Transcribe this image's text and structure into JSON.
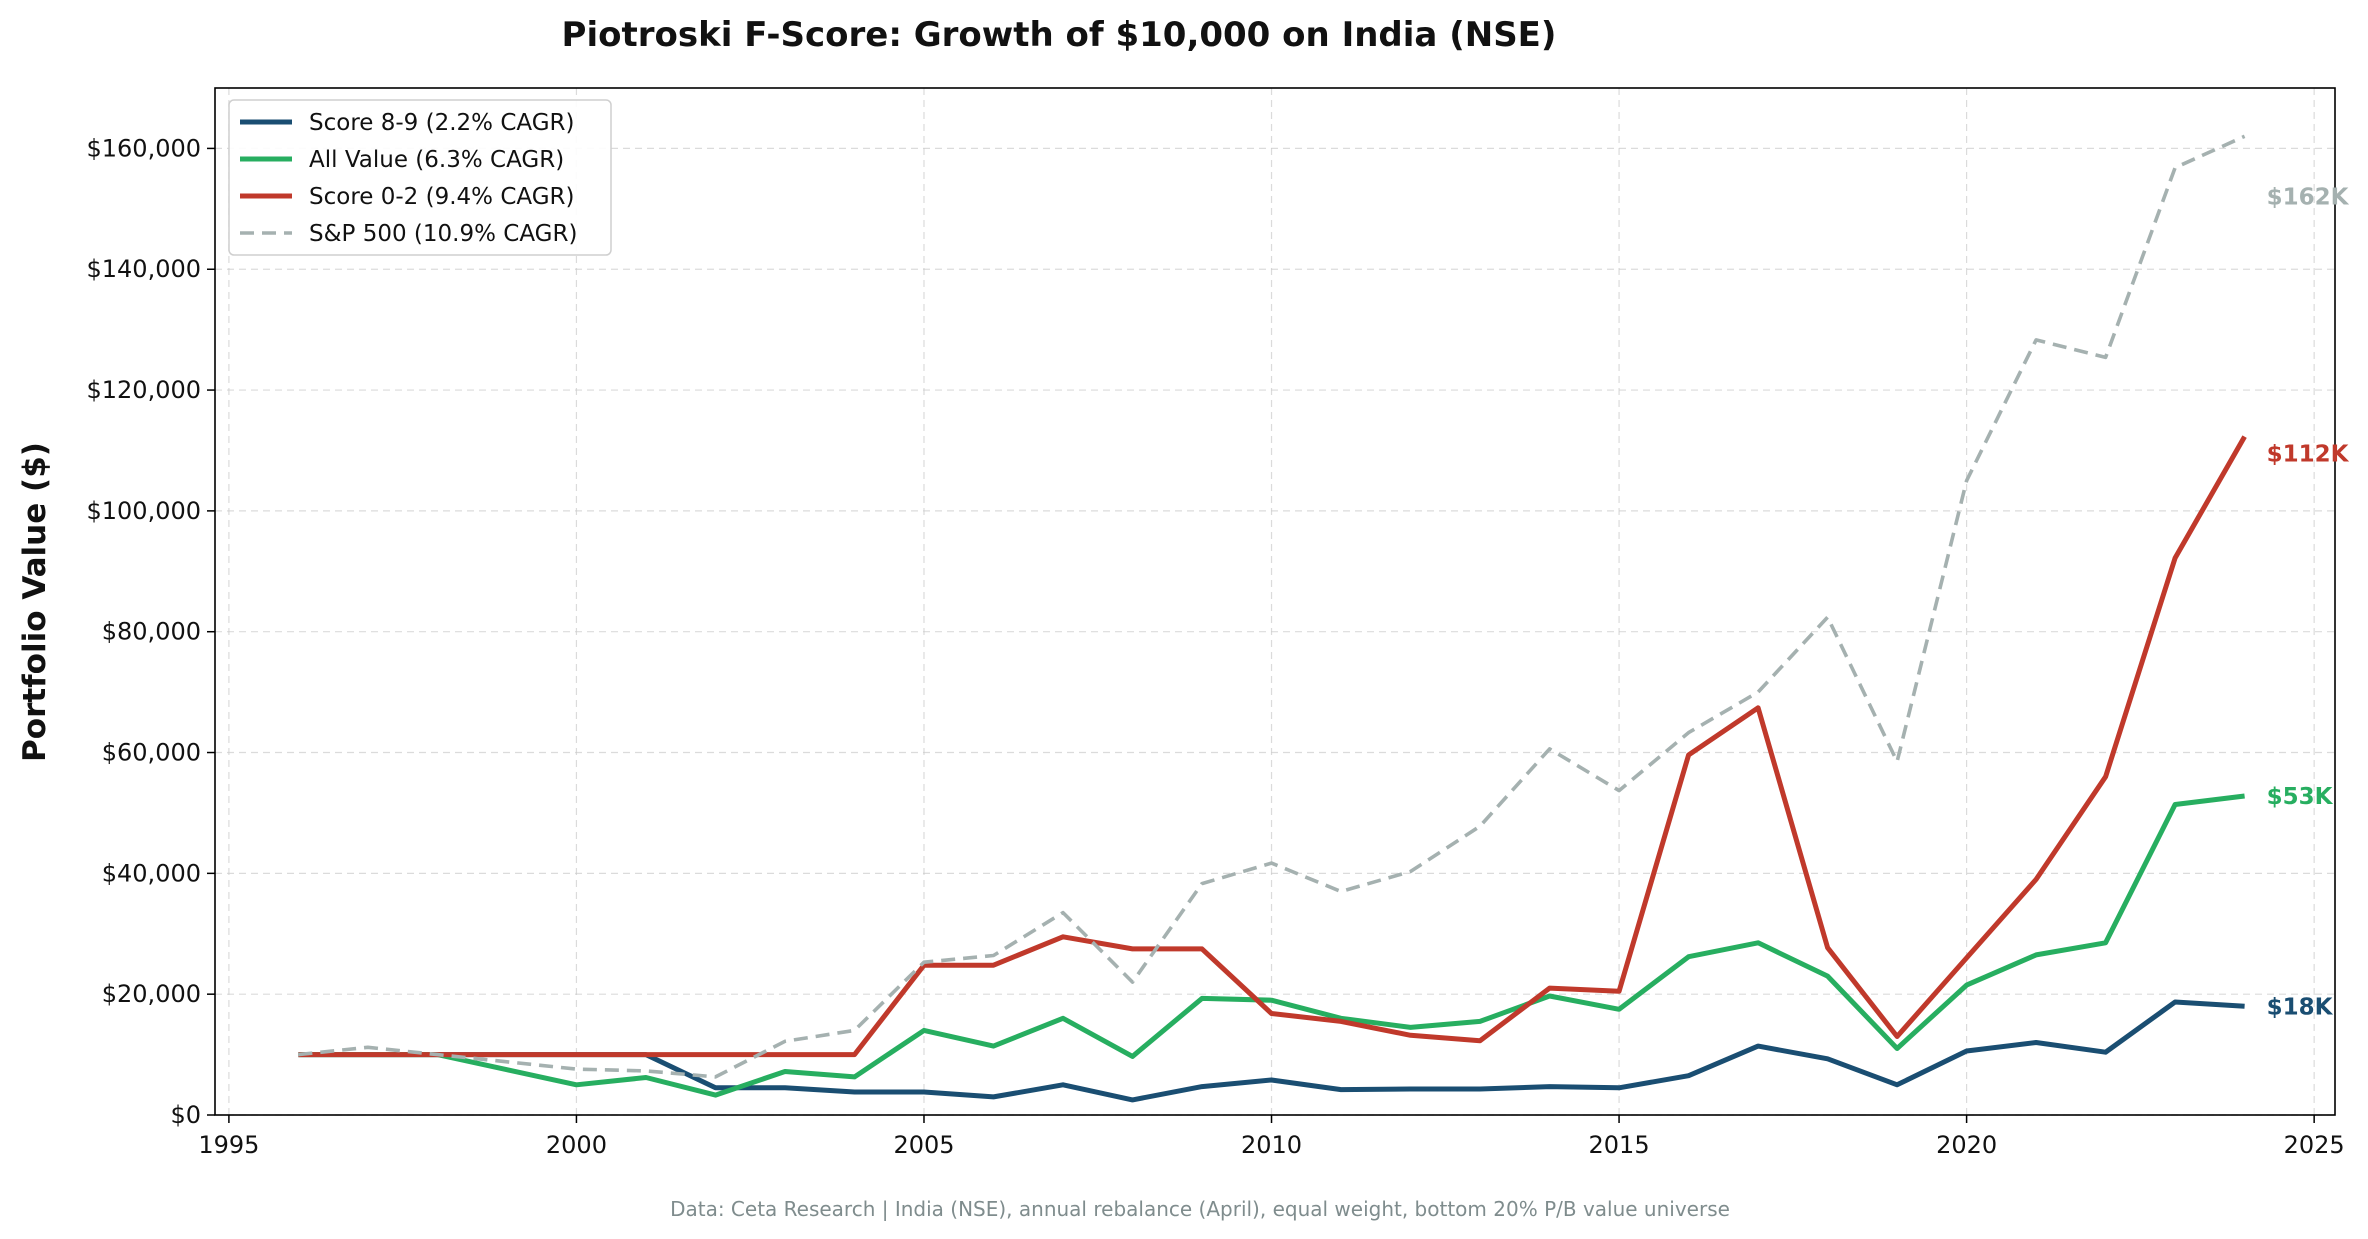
{
  "chart_data": {
    "type": "line",
    "title": "Piotroski F-Score: Growth of $10,000 on India (NSE)",
    "xlabel": "",
    "ylabel": "Portfolio Value ($)",
    "xlim": [
      1994.8,
      2025.3
    ],
    "ylim": [
      0,
      170000
    ],
    "x_ticks": [
      1995,
      2000,
      2005,
      2010,
      2015,
      2020,
      2025
    ],
    "x_tick_labels": [
      "1995",
      "2000",
      "2005",
      "2010",
      "2015",
      "2020",
      "2025"
    ],
    "y_ticks": [
      0,
      20000,
      40000,
      60000,
      80000,
      100000,
      120000,
      140000,
      160000
    ],
    "y_tick_labels": [
      "$0",
      "$20,000",
      "$40,000",
      "$60,000",
      "$80,000",
      "$100,000",
      "$120,000",
      "$140,000",
      "$160,000"
    ],
    "grid": true,
    "legend_position": "top-left",
    "x": [
      1996,
      1997,
      1998,
      1999,
      2000,
      2001,
      2002,
      2003,
      2004,
      2005,
      2006,
      2007,
      2008,
      2009,
      2010,
      2011,
      2012,
      2013,
      2014,
      2015,
      2016,
      2017,
      2018,
      2019,
      2020,
      2021,
      2022,
      2023,
      2024
    ],
    "series": [
      {
        "name": "Score 8-9 (2.2% CAGR)",
        "color": "#1a4e72",
        "dashed": false,
        "end_label": "$18K",
        "values": [
          10000,
          10000,
          10000,
          10000,
          10000,
          10000,
          4500,
          4500,
          3800,
          3800,
          3000,
          5000,
          2500,
          4700,
          5800,
          4200,
          4300,
          4300,
          4700,
          4500,
          6500,
          11400,
          9300,
          5000,
          10600,
          12000,
          10400,
          18700,
          18000
        ]
      },
      {
        "name": "All Value (6.3% CAGR)",
        "color": "#27ae60",
        "dashed": false,
        "end_label": "$53K",
        "values": [
          10000,
          10000,
          10000,
          7500,
          5000,
          6200,
          3300,
          7200,
          6300,
          14000,
          11400,
          16000,
          9700,
          19300,
          19000,
          16000,
          14500,
          15500,
          19700,
          17500,
          26200,
          28500,
          23000,
          11000,
          21500,
          26500,
          28500,
          51400,
          52800
        ]
      },
      {
        "name": "Score 0-2 (9.4% CAGR)",
        "color": "#c0392b",
        "dashed": false,
        "end_label": "$112K",
        "values": [
          10000,
          10000,
          10000,
          10000,
          10000,
          10000,
          10000,
          10000,
          10000,
          24800,
          24800,
          29500,
          27500,
          27500,
          16800,
          15500,
          13200,
          12300,
          21000,
          20500,
          59600,
          67400,
          27700,
          13000,
          26000,
          39000,
          56000,
          92200,
          112300
        ]
      },
      {
        "name": "S&P 500 (10.9% CAGR)",
        "color": "#a5b1b0",
        "dashed": true,
        "end_label": "$162K",
        "values": [
          10000,
          11200,
          10000,
          8800,
          7600,
          7300,
          6300,
          12200,
          14000,
          25300,
          26400,
          33500,
          22000,
          38300,
          41700,
          37000,
          40300,
          47800,
          60600,
          53700,
          63300,
          70000,
          82400,
          58500,
          105000,
          128300,
          125400,
          156800,
          162000
        ]
      }
    ],
    "source_note": "Data: Ceta Research | India (NSE), annual rebalance (April), equal weight, bottom 20% P/B value universe"
  }
}
